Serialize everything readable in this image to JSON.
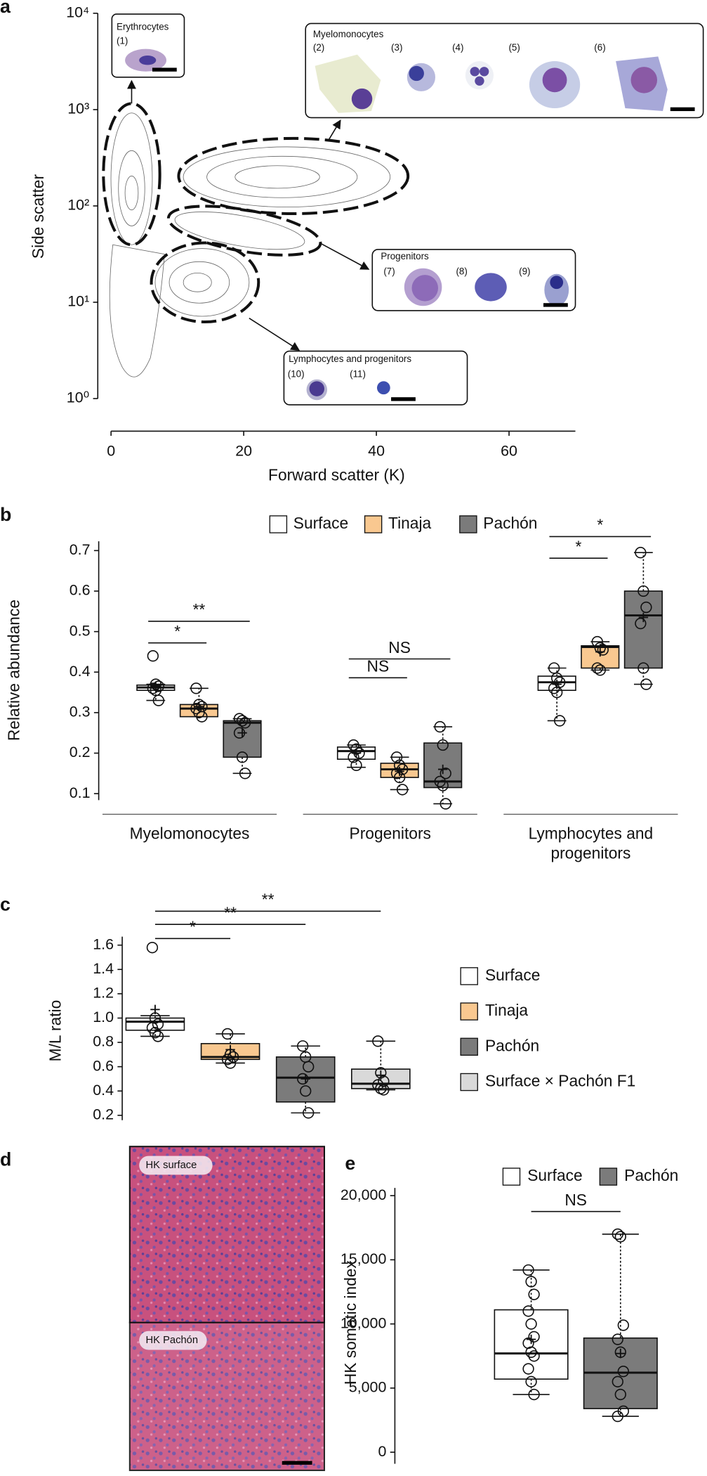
{
  "chart_data": [
    {
      "type": "contour",
      "panel_label": "a",
      "xlabel": "Forward scatter (K)",
      "ylabel": "Side scatter",
      "xlim": [
        -2,
        70
      ],
      "xticks": [
        0,
        20,
        40,
        60
      ],
      "ylim": [
        0.55,
        12000
      ],
      "ylog": true,
      "yticks": [
        {
          "value": 1,
          "label": "10⁰"
        },
        {
          "value": 10,
          "label": "10¹"
        },
        {
          "value": 100,
          "label": "10²"
        },
        {
          "value": 1000,
          "label": "10³"
        },
        {
          "value": 10000,
          "label": "10⁴"
        }
      ],
      "insets": [
        {
          "title": "Erythrocytes",
          "cells": [
            "(1)"
          ]
        },
        {
          "title": "Myelomonocytes",
          "cells": [
            "(2)",
            "(3)",
            "(4)",
            "(5)",
            "(6)"
          ]
        },
        {
          "title": "Progenitors",
          "cells": [
            "(7)",
            "(8)",
            "(9)"
          ]
        },
        {
          "title": "Lymphocytes and progenitors",
          "cells": [
            "(10)",
            "(11)"
          ]
        }
      ]
    },
    {
      "type": "box",
      "panel_label": "b",
      "ylabel": "Relative abundance",
      "categories": [
        "Myelomonocytes",
        "Progenitors",
        "Lymphocytes and progenitors"
      ],
      "ylim": [
        0.084,
        0.723
      ],
      "yticks": [
        0.1,
        0.2,
        0.3,
        0.4,
        0.5,
        0.6,
        0.7
      ],
      "series": [
        {
          "name": "Surface",
          "color": "#ffffff",
          "boxes": [
            {
              "min": 0.33,
              "q1": 0.355,
              "median": 0.362,
              "q3": 0.368,
              "max": 0.37,
              "mean": 0.365,
              "points": [
                0.44,
                0.37,
                0.365,
                0.36,
                0.355,
                0.33
              ]
            },
            {
              "min": 0.165,
              "q1": 0.185,
              "median": 0.205,
              "q3": 0.215,
              "max": 0.22,
              "mean": 0.2,
              "points": [
                0.22,
                0.21,
                0.2,
                0.19,
                0.17
              ]
            },
            {
              "min": 0.28,
              "q1": 0.355,
              "median": 0.375,
              "q3": 0.39,
              "max": 0.41,
              "mean": 0.37,
              "points": [
                0.41,
                0.385,
                0.375,
                0.36,
                0.35,
                0.28
              ]
            }
          ]
        },
        {
          "name": "Tinaja",
          "color": "#f9c890",
          "boxes": [
            {
              "min": 0.29,
              "q1": 0.29,
              "median": 0.31,
              "q3": 0.32,
              "max": 0.36,
              "mean": 0.315,
              "points": [
                0.36,
                0.32,
                0.315,
                0.31,
                0.3,
                0.29
              ]
            },
            {
              "min": 0.11,
              "q1": 0.14,
              "median": 0.16,
              "q3": 0.175,
              "max": 0.19,
              "mean": 0.155,
              "points": [
                0.19,
                0.17,
                0.16,
                0.15,
                0.14,
                0.11
              ]
            },
            {
              "min": 0.405,
              "q1": 0.41,
              "median": 0.462,
              "q3": 0.465,
              "max": 0.475,
              "mean": 0.45,
              "points": [
                0.475,
                0.46,
                0.455,
                0.41,
                0.405
              ]
            }
          ]
        },
        {
          "name": "Pachón",
          "color": "#7b7b7b",
          "boxes": [
            {
              "min": 0.15,
              "q1": 0.19,
              "median": 0.275,
              "q3": 0.28,
              "max": 0.285,
              "mean": 0.25,
              "points": [
                0.285,
                0.28,
                0.275,
                0.25,
                0.19,
                0.15
              ]
            },
            {
              "min": 0.075,
              "q1": 0.115,
              "median": 0.13,
              "q3": 0.225,
              "max": 0.265,
              "mean": 0.16,
              "points": [
                0.265,
                0.22,
                0.15,
                0.13,
                0.12,
                0.075
              ]
            },
            {
              "min": 0.37,
              "q1": 0.41,
              "median": 0.54,
              "q3": 0.6,
              "max": 0.695,
              "mean": 0.535,
              "points": [
                0.695,
                0.6,
                0.56,
                0.52,
                0.41,
                0.37
              ]
            }
          ]
        }
      ],
      "brackets": [
        {
          "label": "*",
          "category": 0,
          "pair": [
            0,
            1
          ]
        },
        {
          "label": "**",
          "category": 0,
          "pair": [
            0,
            2
          ]
        },
        {
          "label": "NS",
          "category": 1,
          "pair": [
            0,
            1
          ]
        },
        {
          "label": "NS",
          "category": 1,
          "pair": [
            0,
            2
          ]
        },
        {
          "label": "*",
          "category": 2,
          "pair": [
            0,
            1
          ]
        },
        {
          "label": "*",
          "category": 2,
          "pair": [
            0,
            2
          ]
        }
      ]
    },
    {
      "type": "box",
      "panel_label": "c",
      "ylabel": "M/L ratio",
      "ylim": [
        0.16,
        1.67
      ],
      "yticks": [
        0.2,
        0.4,
        0.6,
        0.8,
        {
          "value": 1,
          "label": "1.0"
        },
        1.2,
        1.4,
        1.6
      ],
      "series": [
        {
          "name": "Surface",
          "color": "#ffffff",
          "box": {
            "min": 0.85,
            "q1": 0.9,
            "median": 0.97,
            "q3": 1.0,
            "max": 1.02,
            "mean": 1.07,
            "points": [
              1.58,
              1.0,
              0.95,
              0.92,
              0.88,
              0.85
            ]
          }
        },
        {
          "name": "Tinaja",
          "color": "#f9c890",
          "box": {
            "min": 0.63,
            "q1": 0.66,
            "median": 0.68,
            "q3": 0.79,
            "max": 0.87,
            "mean": 0.74,
            "points": [
              0.87,
              0.7,
              0.68,
              0.66,
              0.63
            ]
          }
        },
        {
          "name": "Pachón",
          "color": "#7b7b7b",
          "box": {
            "min": 0.22,
            "q1": 0.31,
            "median": 0.51,
            "q3": 0.68,
            "max": 0.77,
            "mean": 0.5,
            "points": [
              0.77,
              0.68,
              0.6,
              0.5,
              0.4,
              0.22
            ]
          }
        },
        {
          "name": "Surface × Pachón F1",
          "color": "#d9d9d9",
          "box": {
            "min": 0.41,
            "q1": 0.42,
            "median": 0.46,
            "q3": 0.58,
            "max": 0.81,
            "mean": 0.53,
            "points": [
              0.81,
              0.55,
              0.48,
              0.45,
              0.42,
              0.41
            ]
          }
        }
      ],
      "brackets": [
        {
          "label": "*",
          "pair": [
            0,
            1
          ]
        },
        {
          "label": "**",
          "pair": [
            0,
            2
          ]
        },
        {
          "label": "**",
          "pair": [
            0,
            3
          ]
        }
      ]
    },
    {
      "type": "box",
      "panel_label": "e",
      "ylabel": "HK somatic index",
      "ylim": [
        -900,
        20600
      ],
      "yticks": [
        0,
        {
          "value": 5000,
          "label": "5,000"
        },
        {
          "value": 10000,
          "label": "10,000"
        },
        {
          "value": 15000,
          "label": "15,000"
        },
        {
          "value": 20000,
          "label": "20,000"
        }
      ],
      "series": [
        {
          "name": "Surface",
          "color": "#ffffff",
          "box": {
            "min": 4500,
            "q1": 5700,
            "median": 7700,
            "q3": 11100,
            "max": 14200,
            "mean": 8800,
            "points": [
              14200,
              13300,
              12300,
              11000,
              10000,
              9000,
              8500,
              7800,
              7500,
              6500,
              5500,
              4500
            ]
          }
        },
        {
          "name": "Pachón",
          "color": "#7b7b7b",
          "box": {
            "min": 2800,
            "q1": 3400,
            "median": 6200,
            "q3": 8900,
            "max": 17000,
            "mean": 7700,
            "points": [
              17000,
              16800,
              9900,
              8800,
              7800,
              6300,
              5500,
              4500,
              3200,
              2800
            ]
          }
        }
      ],
      "brackets": [
        {
          "label": "NS",
          "pair": [
            0,
            1
          ]
        }
      ]
    }
  ],
  "panel_d": {
    "panel_label": "d",
    "images": [
      "HK surface",
      "HK Pachón"
    ]
  }
}
